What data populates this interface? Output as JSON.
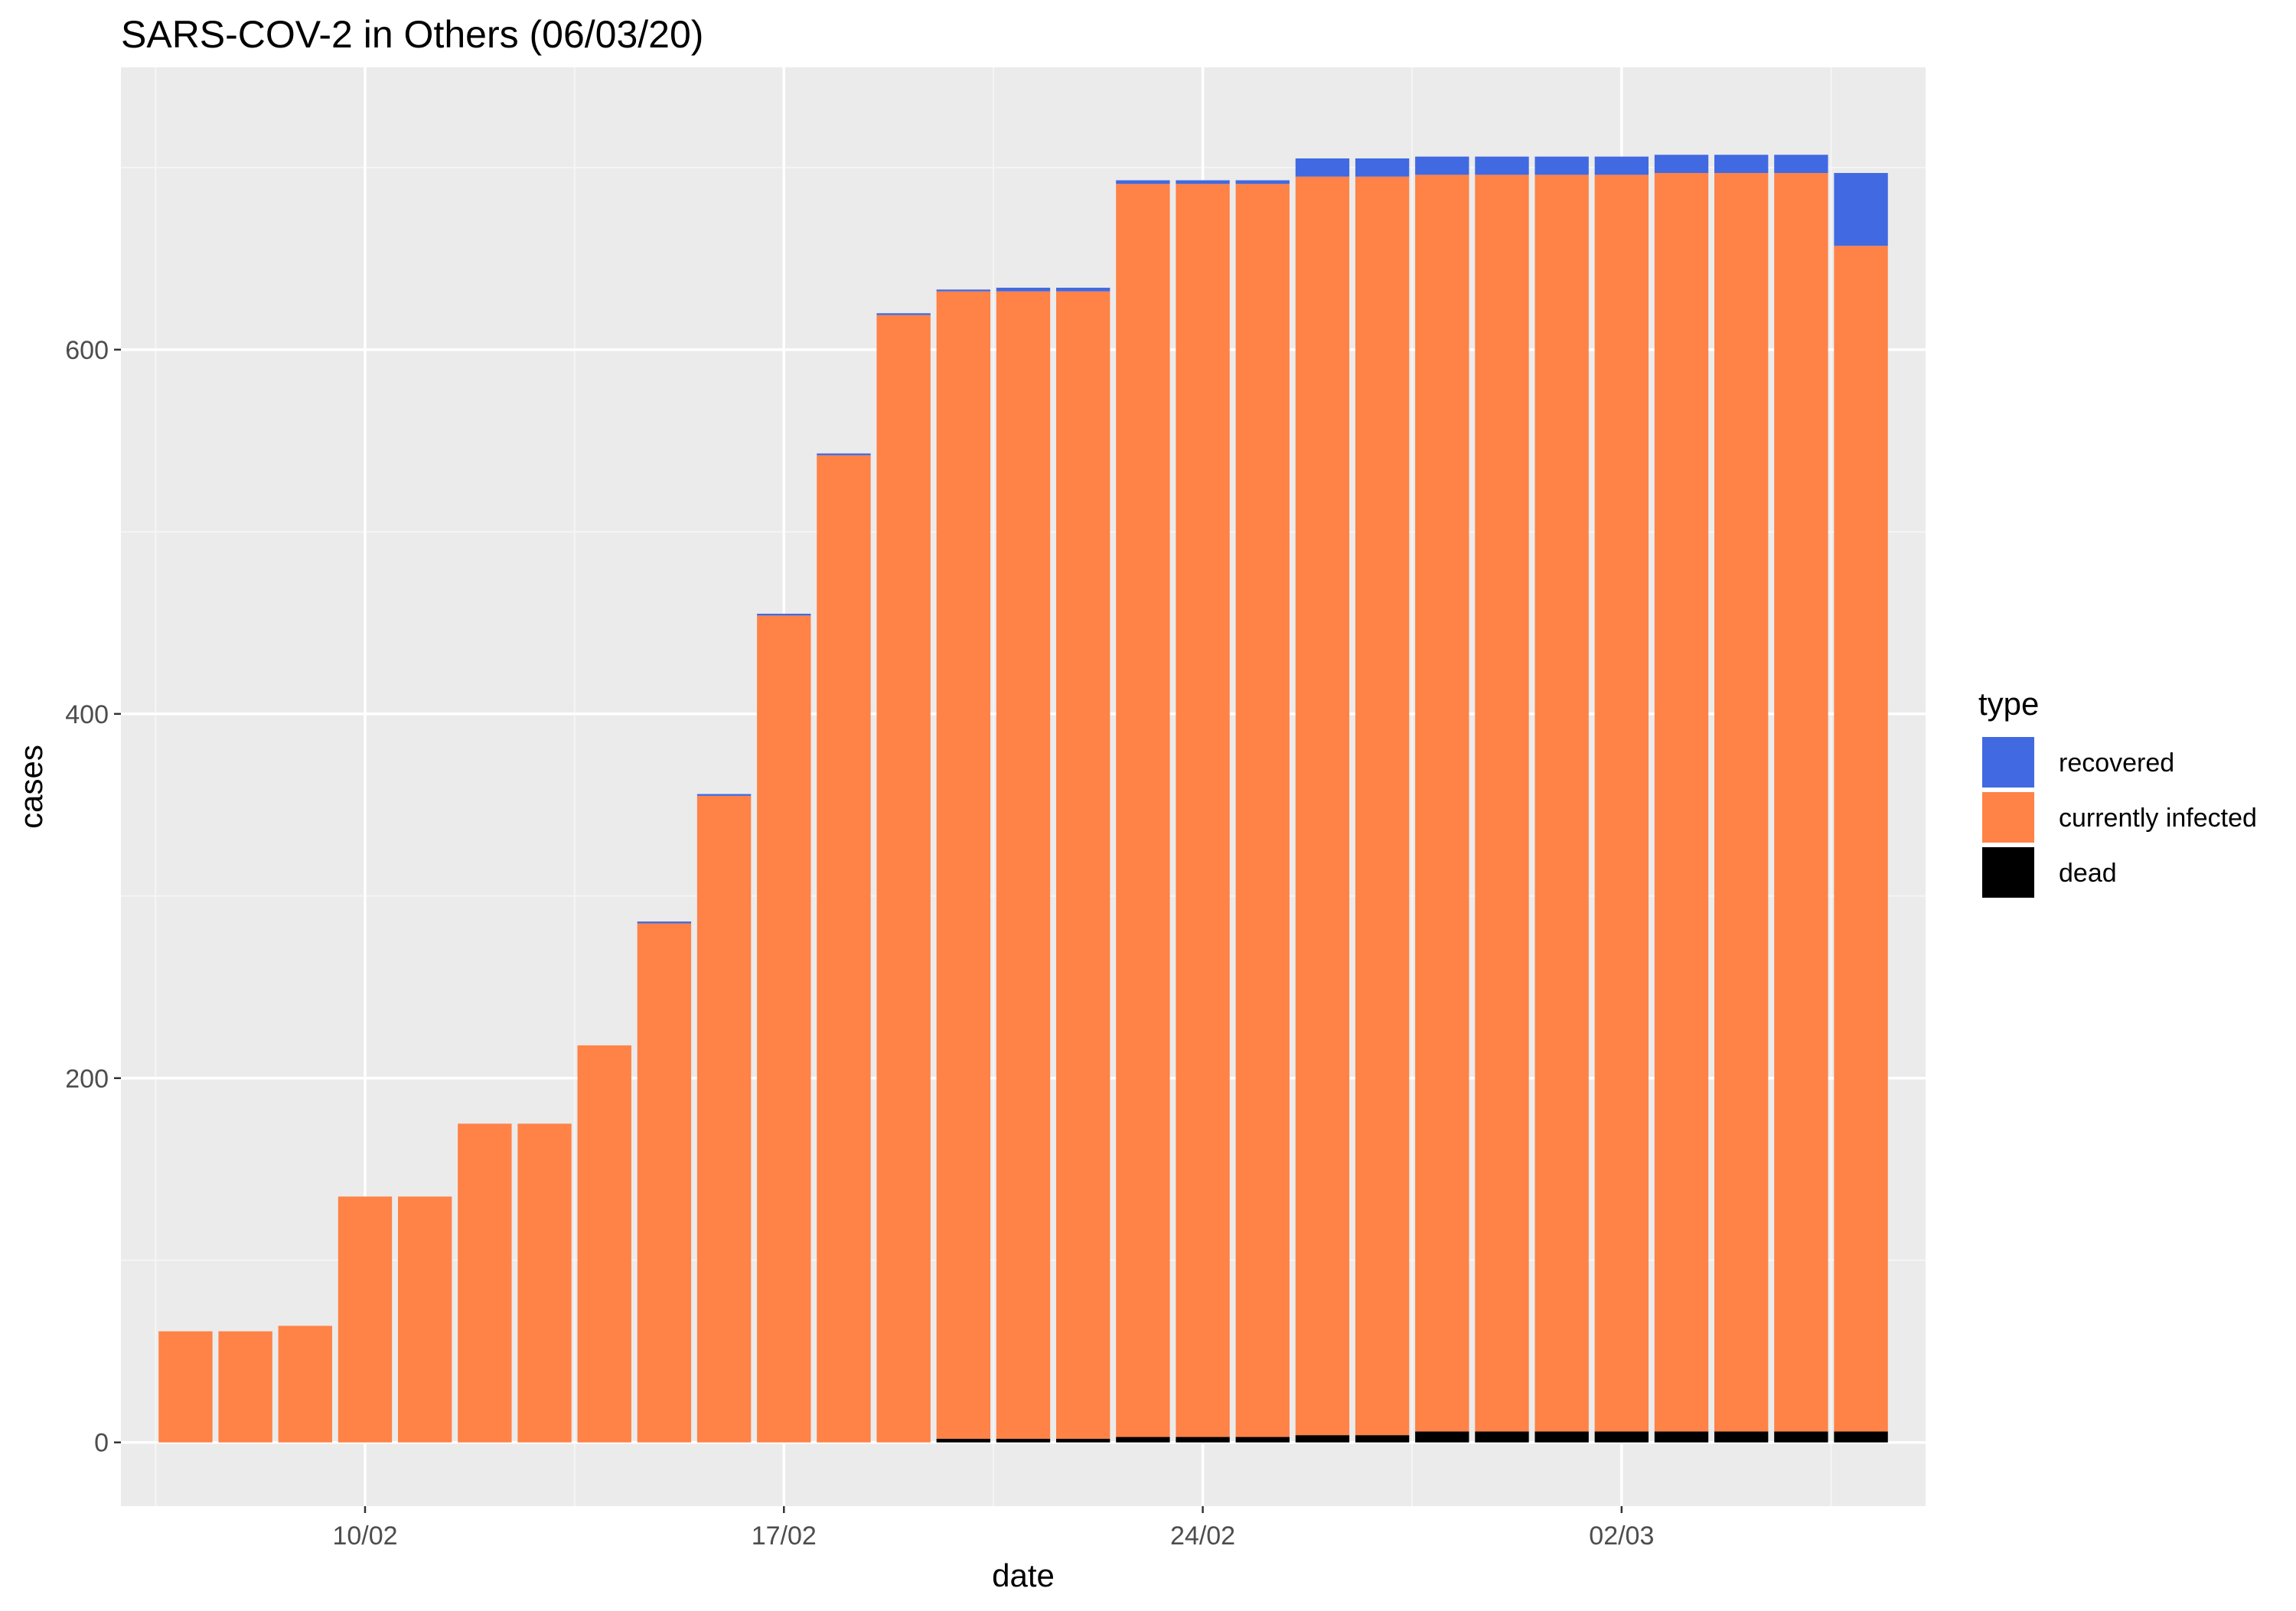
{
  "chart_data": {
    "type": "bar",
    "stacked": true,
    "title": "SARS-COV-2 in Others (06/03/20)",
    "xlabel": "date",
    "ylabel": "cases",
    "ylim": [
      -35,
      755
    ],
    "yticks": [
      0,
      200,
      400,
      600
    ],
    "xticks": [
      {
        "label": "10/02",
        "date": "2020-02-10"
      },
      {
        "label": "17/02",
        "date": "2020-02-17"
      },
      {
        "label": "24/02",
        "date": "2020-02-24"
      },
      {
        "label": "02/03",
        "date": "2020-03-02"
      }
    ],
    "x": [
      "2020-02-07",
      "2020-02-08",
      "2020-02-09",
      "2020-02-10",
      "2020-02-11",
      "2020-02-12",
      "2020-02-13",
      "2020-02-14",
      "2020-02-15",
      "2020-02-16",
      "2020-02-17",
      "2020-02-18",
      "2020-02-19",
      "2020-02-20",
      "2020-02-21",
      "2020-02-22",
      "2020-02-23",
      "2020-02-24",
      "2020-02-25",
      "2020-02-26",
      "2020-02-27",
      "2020-02-28",
      "2020-02-29",
      "2020-03-01",
      "2020-03-02",
      "2020-03-03",
      "2020-03-04",
      "2020-03-05",
      "2020-03-06"
    ],
    "series": [
      {
        "name": "dead",
        "color": "#000000",
        "values": [
          0,
          0,
          0,
          0,
          0,
          0,
          0,
          0,
          0,
          0,
          0,
          0,
          0,
          2,
          2,
          2,
          3,
          3,
          3,
          4,
          4,
          6,
          6,
          6,
          6,
          6,
          6,
          6,
          6
        ]
      },
      {
        "name": "currently infected",
        "color": "#FF8247",
        "values": [
          61,
          61,
          64,
          135,
          135,
          175,
          175,
          218,
          285,
          355,
          454,
          542,
          619,
          630,
          630,
          630,
          688,
          688,
          688,
          691,
          691,
          690,
          690,
          690,
          690,
          691,
          691,
          691,
          651
        ]
      },
      {
        "name": "recovered",
        "color": "#4169E1",
        "values": [
          0,
          0,
          0,
          0,
          0,
          0,
          0,
          0,
          1,
          1,
          1,
          1,
          1,
          1,
          2,
          2,
          2,
          2,
          2,
          10,
          10,
          10,
          10,
          10,
          10,
          10,
          10,
          10,
          40
        ]
      }
    ],
    "legend": {
      "title": "type",
      "entries": [
        "recovered",
        "currently infected",
        "dead"
      ],
      "position": "right"
    },
    "grid": true
  }
}
